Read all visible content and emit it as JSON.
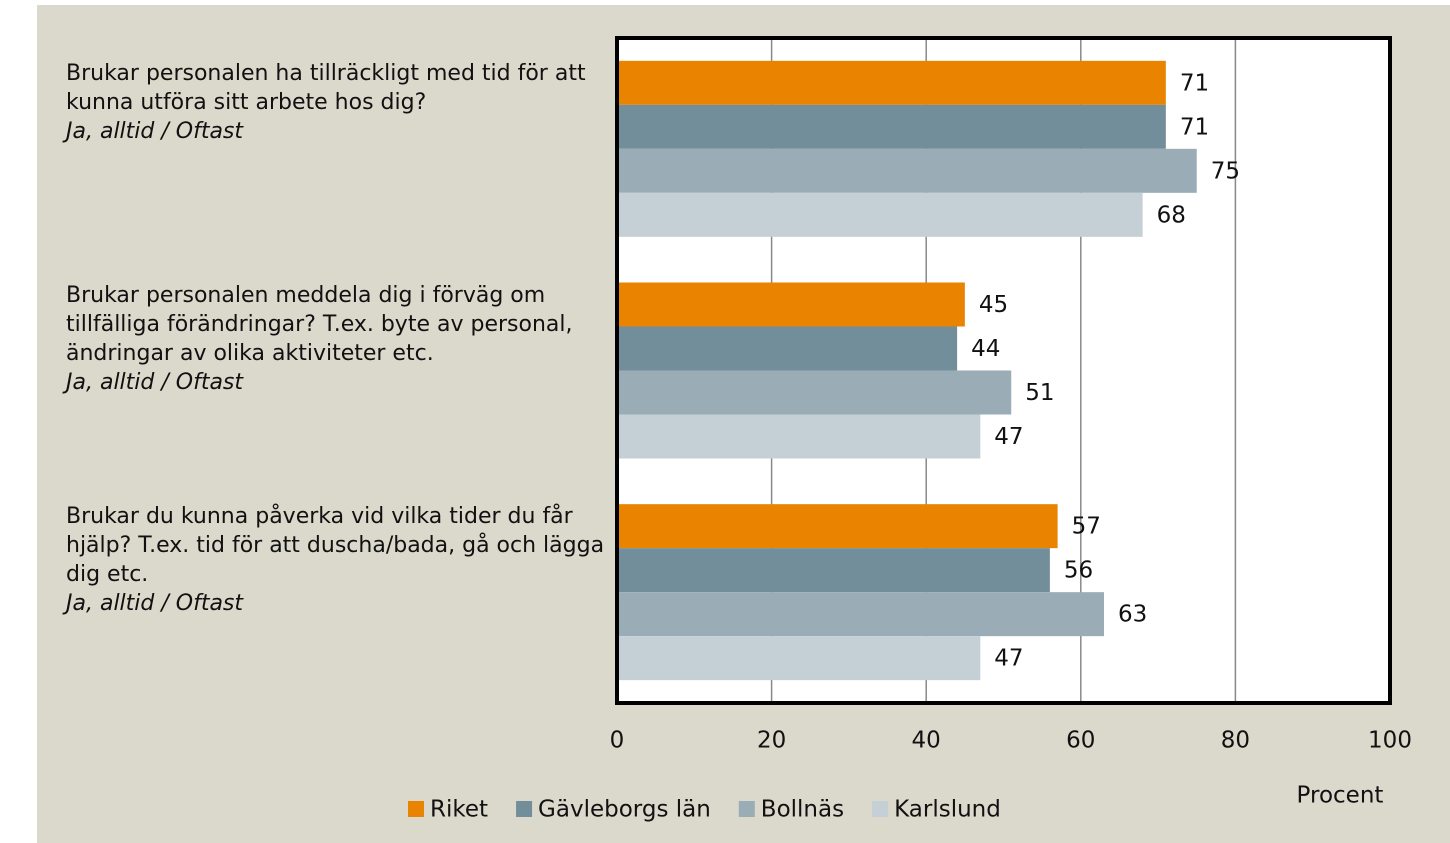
{
  "chart_data": {
    "type": "bar",
    "orientation": "horizontal",
    "categories": [
      "Brukar personalen ha tillräckligt med tid för att kunna utföra sitt arbete hos dig?",
      "Brukar personalen meddela dig i förväg om tillfälliga förändringar? T.ex. byte av personal, ändringar av olika aktiviteter etc.",
      "Brukar du kunna påverka vid vilka tider du får hjälp? T.ex. tid för att duscha/bada, gå och lägga dig etc."
    ],
    "category_answers": [
      "Ja, alltid / Oftast",
      "Ja, alltid / Oftast",
      "Ja, alltid / Oftast"
    ],
    "series": [
      {
        "name": "Riket",
        "color": "#e98300",
        "values": [
          71,
          45,
          57
        ]
      },
      {
        "name": "Gävleborgs län",
        "color": "#738e9b",
        "values": [
          71,
          44,
          56
        ]
      },
      {
        "name": "Bollnäs",
        "color": "#9aadb6",
        "values": [
          75,
          51,
          63
        ]
      },
      {
        "name": "Karlslund",
        "color": "#c5d0d6",
        "values": [
          68,
          47,
          47
        ]
      }
    ],
    "xlim": [
      0,
      100
    ],
    "xticks": [
      0,
      20,
      40,
      60,
      80,
      100
    ],
    "xlabel": "Procent",
    "grid": true,
    "legend": "bottom"
  }
}
